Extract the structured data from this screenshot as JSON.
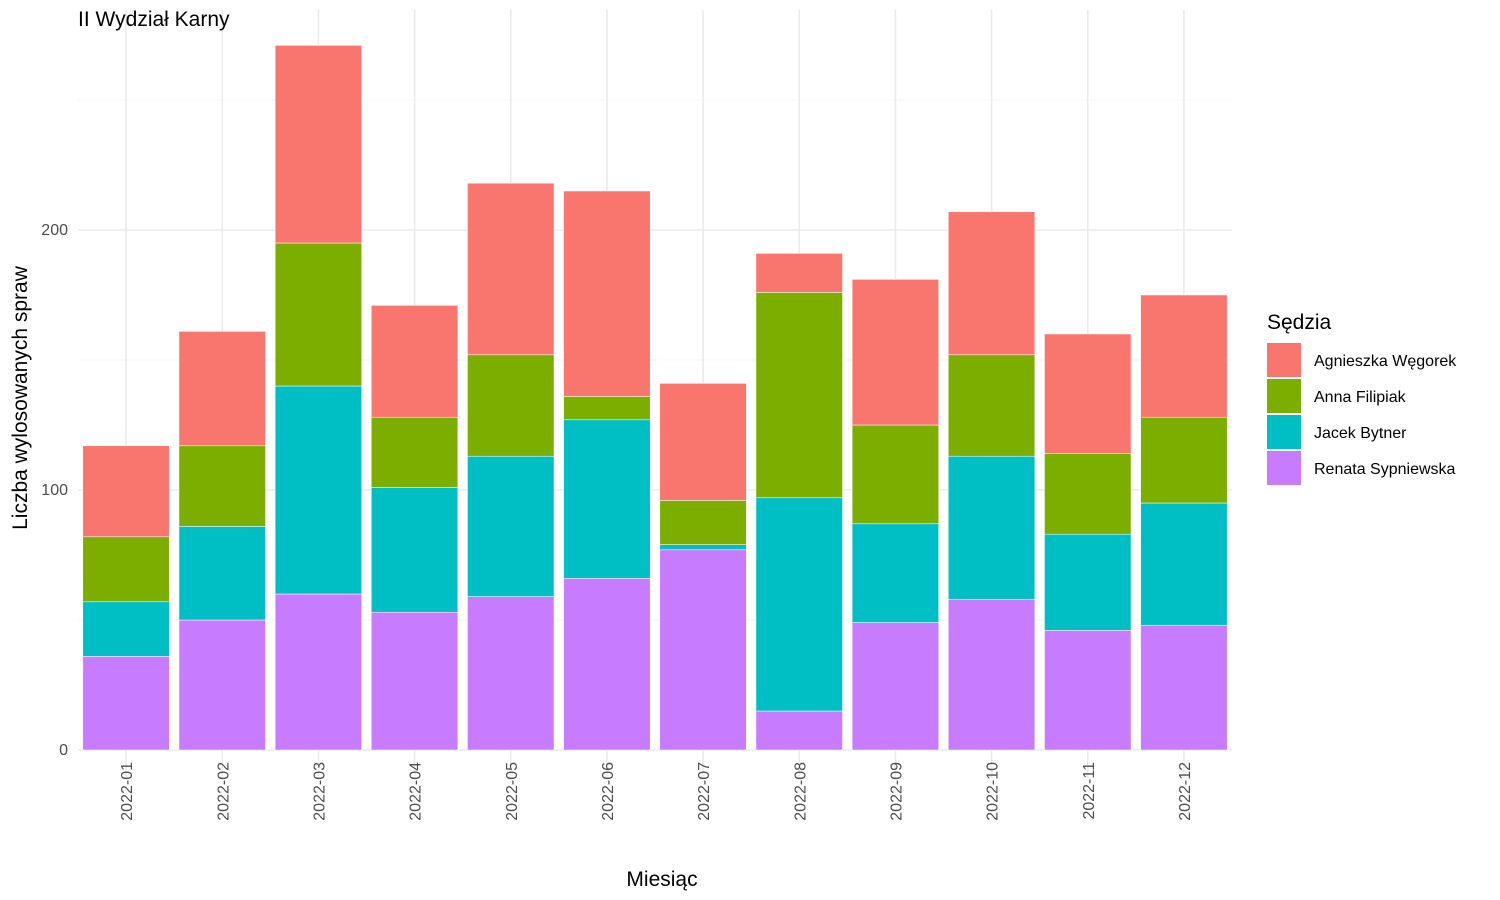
{
  "chart_data": {
    "type": "bar",
    "stacked": true,
    "title": "II Wydział Karny",
    "xlabel": "Miesiąc",
    "ylabel": "Liczba wylosowanych spraw",
    "ylim": [
      0,
      275
    ],
    "yticks": [
      0,
      100,
      200
    ],
    "grid": true,
    "legend_title": "Sędzia",
    "legend_position": "right",
    "categories": [
      "2022-01",
      "2022-02",
      "2022-03",
      "2022-04",
      "2022-05",
      "2022-06",
      "2022-07",
      "2022-08",
      "2022-09",
      "2022-10",
      "2022-11",
      "2022-12"
    ],
    "series": [
      {
        "name": "Renata Sypniewska",
        "color": "#C77CFF",
        "values": [
          36,
          50,
          60,
          53,
          59,
          66,
          77,
          15,
          49,
          58,
          46,
          48
        ]
      },
      {
        "name": "Jacek Bytner",
        "color": "#00BFC4",
        "values": [
          21,
          36,
          80,
          48,
          54,
          61,
          2,
          82,
          38,
          55,
          37,
          47
        ]
      },
      {
        "name": "Anna Filipiak",
        "color": "#7CAE00",
        "values": [
          25,
          31,
          55,
          27,
          39,
          9,
          17,
          79,
          38,
          39,
          31,
          33
        ]
      },
      {
        "name": "Agnieszka Węgorek",
        "color": "#F8766D",
        "values": [
          35,
          44,
          76,
          43,
          66,
          79,
          45,
          15,
          56,
          55,
          46,
          47
        ]
      }
    ],
    "legend_order": [
      "Agnieszka Węgorek",
      "Anna Filipiak",
      "Jacek Bytner",
      "Renata Sypniewska"
    ]
  }
}
